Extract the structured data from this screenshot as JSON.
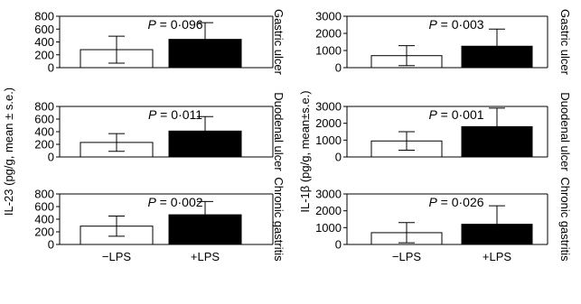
{
  "left_panel": {
    "ylabel": "IL-23 (pg/g, mean ± s.e.)"
  },
  "right_panel": {
    "ylabel": "IL-1β (pg/g, mean±s.e.)"
  },
  "chart_data": [
    {
      "type": "bar",
      "panel": "left",
      "row_label": "Gastric ulcer",
      "categories": [
        "−LPS",
        "+LPS"
      ],
      "values": [
        280,
        440
      ],
      "errors": [
        210,
        260
      ],
      "yticks": [
        "0",
        "200",
        "400",
        "600",
        "800"
      ],
      "ylim": [
        0,
        800
      ],
      "p_value": "0·096",
      "bar_colors": [
        "#ffffff",
        "#000000"
      ]
    },
    {
      "type": "bar",
      "panel": "left",
      "row_label": "Duodenal ulcer",
      "categories": [
        "−LPS",
        "+LPS"
      ],
      "values": [
        230,
        410
      ],
      "errors": [
        140,
        230
      ],
      "yticks": [
        "0",
        "200",
        "400",
        "600",
        "800"
      ],
      "ylim": [
        0,
        800
      ],
      "p_value": "0·011",
      "bar_colors": [
        "#ffffff",
        "#000000"
      ]
    },
    {
      "type": "bar",
      "panel": "left",
      "row_label": "Chronic gastritis",
      "categories": [
        "−LPS",
        "+LPS"
      ],
      "values": [
        290,
        470
      ],
      "errors": [
        160,
        210
      ],
      "yticks": [
        "0",
        "200",
        "400",
        "600",
        "800"
      ],
      "ylim": [
        0,
        800
      ],
      "p_value": "0·002",
      "bar_colors": [
        "#ffffff",
        "#000000"
      ]
    },
    {
      "type": "bar",
      "panel": "right",
      "row_label": "Gastric ulcer",
      "categories": [
        "−LPS",
        "+LPS"
      ],
      "values": [
        700,
        1250
      ],
      "errors": [
        580,
        1000
      ],
      "yticks": [
        "0",
        "1000",
        "2000",
        "3000"
      ],
      "ylim": [
        0,
        3000
      ],
      "p_value": "0·003",
      "bar_colors": [
        "#ffffff",
        "#000000"
      ]
    },
    {
      "type": "bar",
      "panel": "right",
      "row_label": "Duodenal ulcer",
      "categories": [
        "−LPS",
        "+LPS"
      ],
      "values": [
        950,
        1800
      ],
      "errors": [
        550,
        1100
      ],
      "yticks": [
        "0",
        "1000",
        "2000",
        "3000"
      ],
      "ylim": [
        0,
        3000
      ],
      "p_value": "0·001",
      "bar_colors": [
        "#ffffff",
        "#000000"
      ]
    },
    {
      "type": "bar",
      "panel": "right",
      "row_label": "Chronic gastritis",
      "categories": [
        "−LPS",
        "+LPS"
      ],
      "values": [
        700,
        1200
      ],
      "errors": [
        600,
        1100
      ],
      "yticks": [
        "0",
        "1000",
        "2000",
        "3000"
      ],
      "ylim": [
        0,
        3000
      ],
      "p_value": "0·026",
      "bar_colors": [
        "#ffffff",
        "#000000"
      ]
    }
  ]
}
